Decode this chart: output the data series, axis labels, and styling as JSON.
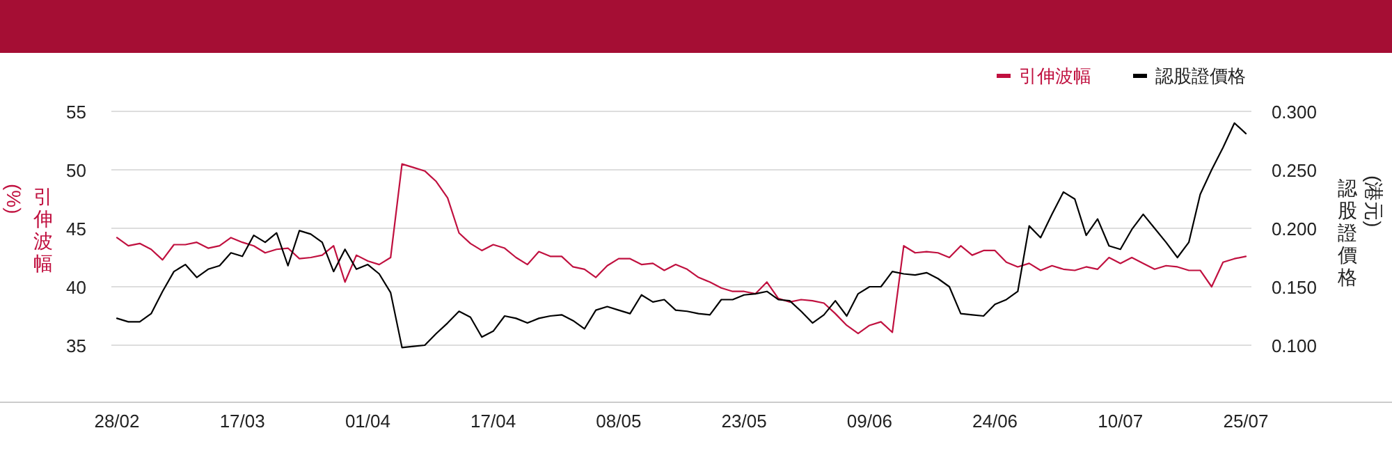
{
  "chart_data": {
    "type": "line",
    "categories": [
      "28/02",
      null,
      null,
      null,
      null,
      null,
      null,
      null,
      null,
      null,
      null,
      "17/03",
      null,
      null,
      null,
      null,
      null,
      null,
      null,
      null,
      null,
      null,
      "01/04",
      null,
      null,
      null,
      null,
      null,
      null,
      null,
      null,
      null,
      null,
      "17/04",
      null,
      null,
      null,
      null,
      null,
      null,
      null,
      null,
      null,
      null,
      "08/05",
      null,
      null,
      null,
      null,
      null,
      null,
      null,
      null,
      null,
      null,
      "23/05",
      null,
      null,
      null,
      null,
      null,
      null,
      null,
      null,
      null,
      null,
      "09/06",
      null,
      null,
      null,
      null,
      null,
      null,
      null,
      null,
      null,
      null,
      "24/06",
      null,
      null,
      null,
      null,
      null,
      null,
      null,
      null,
      null,
      null,
      "10/07",
      null,
      null,
      null,
      null,
      null,
      null,
      null,
      null,
      null,
      null,
      "25/07"
    ],
    "ylabel": "引伸波幅(%)",
    "y2label": "認股證價格(港元)",
    "ylim": [
      30,
      55
    ],
    "yticks": [
      35,
      40,
      45,
      50,
      55
    ],
    "y2lim": [
      0.05,
      0.3
    ],
    "y2ticks": [
      {
        "value": 0.1,
        "label": "0.100"
      },
      {
        "value": 0.15,
        "label": "0.150"
      },
      {
        "value": 0.2,
        "label": "0.200"
      },
      {
        "value": 0.25,
        "label": "0.250"
      },
      {
        "value": 0.3,
        "label": "0.300"
      }
    ],
    "grid": "y",
    "legend": "top right",
    "marker": "none",
    "line_style": "solid",
    "series": [
      {
        "name": "引伸波幅",
        "color": "#c0103f",
        "values": [
          44.2,
          43.5,
          43.7,
          43.2,
          42.3,
          43.6,
          43.6,
          43.8,
          43.3,
          43.5,
          44.2,
          43.8,
          43.5,
          42.9,
          43.2,
          43.3,
          42.4,
          42.5,
          42.7,
          43.5,
          40.4,
          42.7,
          42.2,
          41.9,
          42.5,
          50.5,
          50.2,
          49.9,
          49.0,
          47.6,
          44.6,
          43.7,
          43.1,
          43.6,
          43.3,
          42.5,
          41.9,
          43.0,
          42.6,
          42.6,
          41.7,
          41.5,
          40.8,
          41.8,
          42.4,
          42.4,
          41.9,
          42.0,
          41.4,
          41.9,
          41.5,
          40.8,
          40.4,
          39.9,
          39.6,
          39.6,
          39.4,
          40.4,
          39.0,
          38.7,
          38.9,
          38.8,
          38.6,
          37.7,
          36.7,
          36.0,
          36.7,
          37.0,
          36.1,
          43.5,
          42.9,
          43.0,
          42.9,
          42.5,
          43.5,
          42.7,
          43.1,
          43.1,
          42.1,
          41.7,
          42.0,
          41.4,
          41.8,
          41.5,
          41.4,
          41.7,
          41.5,
          42.5,
          42.0,
          42.5,
          42.0,
          41.5,
          41.8,
          41.7,
          41.4,
          41.4,
          40.0,
          42.1,
          42.4,
          42.6
        ]
      },
      {
        "name": "認股證價格",
        "color": "#000000",
        "axis": "y2",
        "values": [
          0.123,
          0.12,
          0.12,
          0.127,
          0.146,
          0.163,
          0.169,
          0.158,
          0.165,
          0.168,
          0.179,
          0.176,
          0.194,
          0.188,
          0.196,
          0.168,
          0.198,
          0.195,
          0.188,
          0.163,
          0.182,
          0.165,
          0.169,
          0.161,
          0.145,
          0.098,
          0.099,
          0.1,
          0.11,
          0.119,
          0.129,
          0.124,
          0.107,
          0.112,
          0.125,
          0.123,
          0.119,
          0.123,
          0.125,
          0.126,
          0.121,
          0.114,
          0.13,
          0.133,
          0.13,
          0.127,
          0.143,
          0.137,
          0.139,
          0.13,
          0.129,
          0.127,
          0.126,
          0.139,
          0.139,
          0.143,
          0.144,
          0.146,
          0.139,
          0.138,
          0.129,
          0.119,
          0.126,
          0.138,
          0.125,
          0.144,
          0.15,
          0.15,
          0.163,
          0.161,
          0.16,
          0.162,
          0.157,
          0.15,
          0.127,
          0.126,
          0.125,
          0.135,
          0.139,
          0.146,
          0.202,
          0.192,
          0.212,
          0.231,
          0.225,
          0.194,
          0.208,
          0.185,
          0.182,
          0.199,
          0.212,
          0.2,
          0.188,
          0.175,
          0.188,
          0.229,
          0.25,
          0.269,
          0.29,
          0.281
        ]
      }
    ]
  }
}
